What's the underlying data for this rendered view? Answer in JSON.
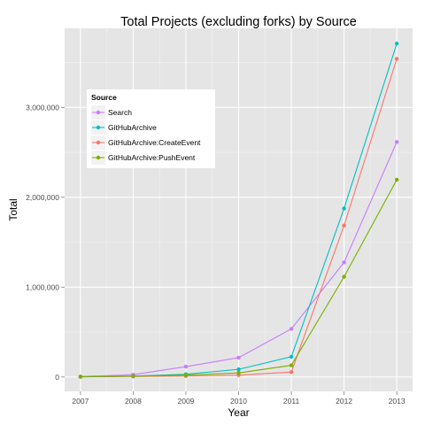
{
  "chart_data": {
    "type": "line",
    "title": "Total Projects (excluding forks) by Source",
    "xlabel": "Year",
    "ylabel": "Total",
    "x": [
      2007,
      2008,
      2009,
      2010,
      2011,
      2012,
      2013
    ],
    "x_tick_labels": [
      "2007",
      "2008",
      "2009",
      "2010",
      "2011",
      "2012",
      "2013"
    ],
    "y_ticks": [
      0,
      1000000,
      2000000,
      3000000
    ],
    "y_tick_labels": [
      "0",
      "1,000,000",
      "2,000,000",
      "3,000,000"
    ],
    "ylim": [
      -160000,
      3880000
    ],
    "grid": true,
    "legend": {
      "title": "Source",
      "placement": "top-left"
    },
    "series": [
      {
        "name": "Search",
        "color": "#C77CFF",
        "values": [
          5000,
          25000,
          115000,
          215000,
          535000,
          1275000,
          2615000
        ]
      },
      {
        "name": "GitHubArchive",
        "color": "#00BFC4",
        "values": [
          3000,
          10000,
          30000,
          85000,
          225000,
          1875000,
          3710000
        ]
      },
      {
        "name": "GitHubArchive:CreateEvent",
        "color": "#F8766D",
        "values": [
          2000,
          5000,
          10000,
          20000,
          55000,
          1685000,
          3540000
        ]
      },
      {
        "name": "GitHubArchive:PushEvent",
        "color": "#7CAE00",
        "values": [
          2000,
          8000,
          20000,
          45000,
          130000,
          1115000,
          2195000
        ]
      }
    ]
  }
}
